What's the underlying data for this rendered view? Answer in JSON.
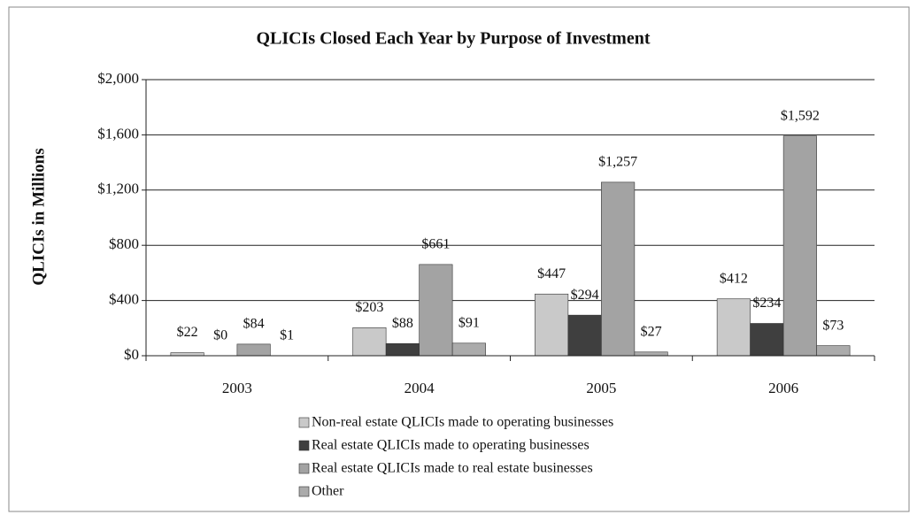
{
  "chart_data": {
    "type": "bar",
    "title": "QLICIs Closed Each Year by Purpose of Investment",
    "y_label": "QLICIs in Millions",
    "categories": [
      "2003",
      "2004",
      "2005",
      "2006"
    ],
    "series": [
      {
        "name": "Non-real estate QLICIs made to operating businesses",
        "color": "#c9c9c9",
        "values": [
          22,
          203,
          447,
          412
        ],
        "value_labels": [
          "$22",
          "$203",
          "$447",
          "$412"
        ]
      },
      {
        "name": "Real estate QLICIs made to operating businesses",
        "color": "#3f3f3f",
        "values": [
          0,
          88,
          294,
          234
        ],
        "value_labels": [
          "$0",
          "$88",
          "$294",
          "$234"
        ]
      },
      {
        "name": "Real estate QLICIs made to real estate businesses",
        "color": "#a3a3a3",
        "values": [
          84,
          661,
          1257,
          1592
        ],
        "value_labels": [
          "$84",
          "$661",
          "$1,257",
          "$1,592"
        ]
      },
      {
        "name": "Other",
        "color": "#ababab",
        "values": [
          1,
          91,
          27,
          73
        ],
        "value_labels": [
          "$1",
          "$91",
          "$27",
          "$73"
        ]
      }
    ],
    "ylim": [
      0,
      2000
    ],
    "yticks": [
      {
        "value": 0,
        "label": "$0"
      },
      {
        "value": 400,
        "label": "$400"
      },
      {
        "value": 800,
        "label": "$800"
      },
      {
        "value": 1200,
        "label": "$1,200"
      },
      {
        "value": 1600,
        "label": "$1,600"
      },
      {
        "value": 2000,
        "label": "$2,000"
      }
    ],
    "grid": true
  }
}
